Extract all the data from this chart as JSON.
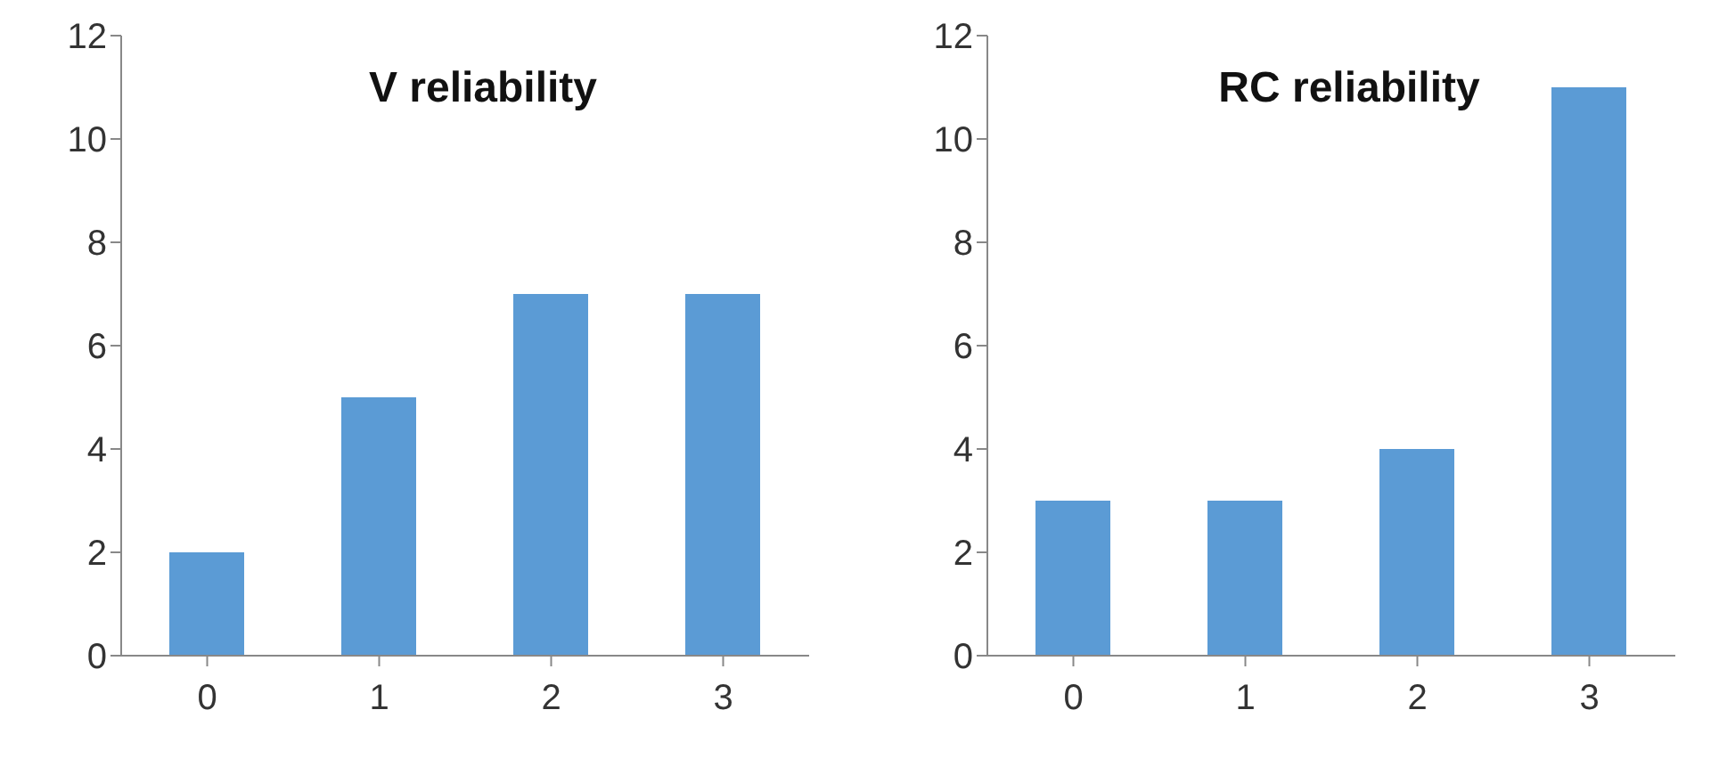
{
  "chart_data": [
    {
      "type": "bar",
      "title": "V reliability",
      "categories": [
        "0",
        "1",
        "2",
        "3"
      ],
      "values": [
        2,
        5,
        7,
        7
      ],
      "color": "#5b9bd5",
      "ylim": [
        0,
        12
      ],
      "yticks": [
        0,
        2,
        4,
        6,
        8,
        10,
        12
      ],
      "grid": false,
      "legend": false
    },
    {
      "type": "bar",
      "title": "RC reliability",
      "categories": [
        "0",
        "1",
        "2",
        "3"
      ],
      "values": [
        3,
        3,
        4,
        11
      ],
      "color": "#5b9bd5",
      "ylim": [
        0,
        12
      ],
      "yticks": [
        0,
        2,
        4,
        6,
        8,
        10,
        12
      ],
      "grid": false,
      "legend": false
    }
  ]
}
